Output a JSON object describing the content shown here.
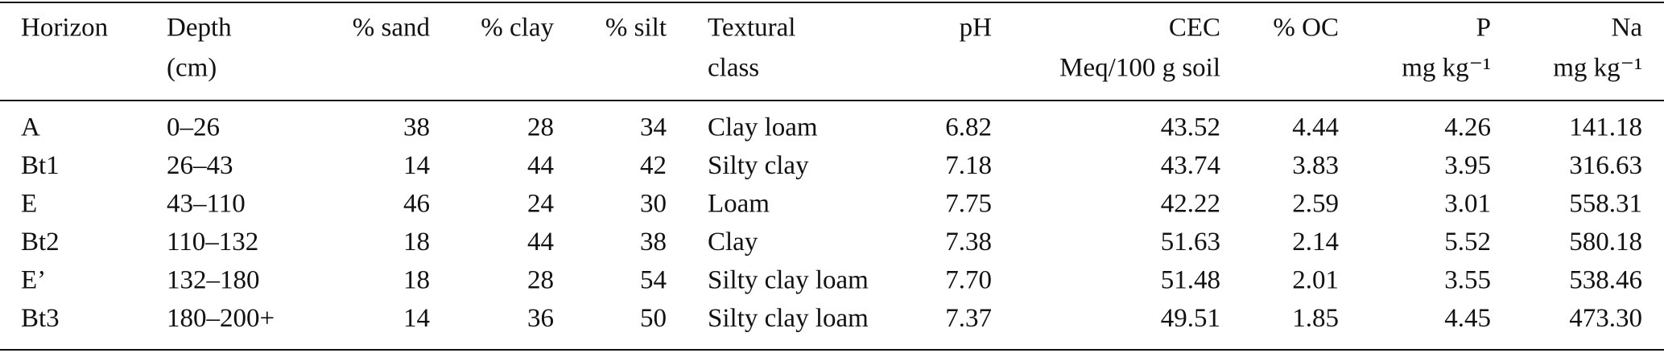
{
  "table": {
    "header": [
      [
        "Horizon"
      ],
      [
        "Depth",
        "(cm)"
      ],
      [
        "% sand"
      ],
      [
        "% clay"
      ],
      [
        "% silt"
      ],
      [
        "Textural",
        "class"
      ],
      [
        "pH"
      ],
      [
        "CEC",
        "Meq/100 g soil"
      ],
      [
        "% OC"
      ],
      [
        "P",
        "mg kg⁻¹"
      ],
      [
        "Na",
        "mg kg⁻¹"
      ]
    ],
    "rows": [
      [
        "A",
        "0–26",
        "38",
        "28",
        "34",
        "Clay loam",
        "6.82",
        "43.52",
        "4.44",
        "4.26",
        "141.18"
      ],
      [
        "Bt1",
        "26–43",
        "14",
        "44",
        "42",
        "Silty clay",
        "7.18",
        "43.74",
        "3.83",
        "3.95",
        "316.63"
      ],
      [
        "E",
        "43–110",
        "46",
        "24",
        "30",
        "Loam",
        "7.75",
        "42.22",
        "2.59",
        "3.01",
        "558.31"
      ],
      [
        "Bt2",
        "110–132",
        "18",
        "44",
        "38",
        "Clay",
        "7.38",
        "51.63",
        "2.14",
        "5.52",
        "580.18"
      ],
      [
        "E’",
        "132–180",
        "18",
        "28",
        "54",
        "Silty clay loam",
        "7.70",
        "51.48",
        "2.01",
        "3.55",
        "538.46"
      ],
      [
        "Bt3",
        "180–200+",
        "14",
        "36",
        "50",
        "Silty clay loam",
        "7.37",
        "49.51",
        "1.85",
        "4.45",
        "473.30"
      ]
    ]
  }
}
